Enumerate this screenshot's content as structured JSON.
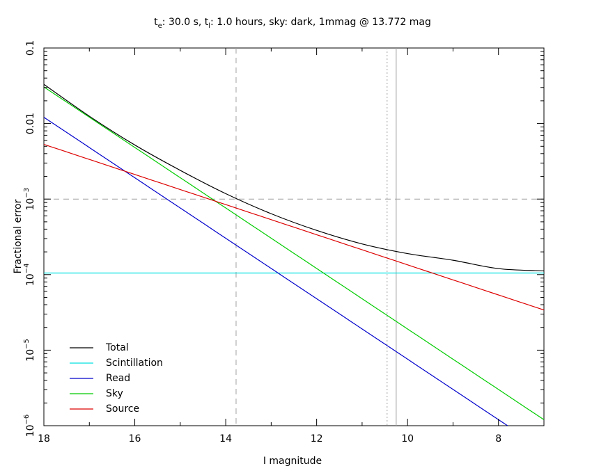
{
  "chart_data": {
    "type": "line",
    "title": {
      "t_e_base": "t",
      "t_e_sub": "e",
      "t_e_value": ": 30.0 s, ",
      "t_l_base": "t",
      "t_l_sub": "l",
      "rest": ": 1.0 hours, sky: dark, 1mmag @ 13.772 mag"
    },
    "xlabel": "I magnitude",
    "ylabel": "Fractional error",
    "xlim": [
      18,
      7
    ],
    "ylim_log10": [
      -6,
      -1
    ],
    "y_scale": "log",
    "x_ticks": [
      {
        "value": 18,
        "label": "18"
      },
      {
        "value": 16,
        "label": "16"
      },
      {
        "value": 14,
        "label": "14"
      },
      {
        "value": 12,
        "label": "12"
      },
      {
        "value": 10,
        "label": "10"
      },
      {
        "value": 8,
        "label": "8"
      }
    ],
    "y_ticks": [
      {
        "exp": -1,
        "label": "0.1",
        "base": "",
        "sup": ""
      },
      {
        "exp": -2,
        "label": "0.01",
        "base": "",
        "sup": ""
      },
      {
        "exp": -3,
        "label": "",
        "base": "10",
        "sup": "−3"
      },
      {
        "exp": -4,
        "label": "",
        "base": "10",
        "sup": "−4"
      },
      {
        "exp": -5,
        "label": "",
        "base": "10",
        "sup": "−5"
      },
      {
        "exp": -6,
        "label": "",
        "base": "10",
        "sup": "−6"
      }
    ],
    "reference_lines": [
      {
        "axis": "y",
        "value": 0.001,
        "style": "dashed",
        "color": "#a0a0a0"
      },
      {
        "axis": "x",
        "value": 13.772,
        "style": "dashed",
        "color": "#a0a0a0"
      },
      {
        "axis": "x",
        "value": 10.45,
        "style": "dotted",
        "color": "#a0a0a0"
      },
      {
        "axis": "x",
        "value": 10.25,
        "style": "solid",
        "color": "#a0a0a0"
      }
    ],
    "series": [
      {
        "name": "Total",
        "color": "#000000",
        "x": [
          18,
          17,
          16,
          15,
          14,
          13,
          12,
          11,
          10,
          9,
          8,
          7
        ],
        "y": [
          0.033,
          0.0125,
          0.0052,
          0.0024,
          0.00118,
          0.00064,
          0.000385,
          0.000255,
          0.00019,
          0.000155,
          0.00012,
          0.000112
        ]
      },
      {
        "name": "Scintillation",
        "color": "#00e0e0",
        "x": [
          18,
          7
        ],
        "y": [
          0.000105,
          0.000105
        ]
      },
      {
        "name": "Read",
        "color": "#0000cc",
        "x": [
          18,
          7.8
        ],
        "y": [
          0.0121,
          1e-06
        ]
      },
      {
        "name": "Sky",
        "color": "#00cc00",
        "x": [
          18,
          7
        ],
        "y": [
          0.0305,
          1.2e-06
        ]
      },
      {
        "name": "Source",
        "color": "#dd0000",
        "x": [
          18,
          7
        ],
        "y": [
          0.0053,
          3.4e-05
        ]
      }
    ],
    "legend": {
      "position": "bottom-left",
      "entries": [
        "Total",
        "Scintillation",
        "Read",
        "Sky",
        "Source"
      ]
    },
    "grid": false
  }
}
